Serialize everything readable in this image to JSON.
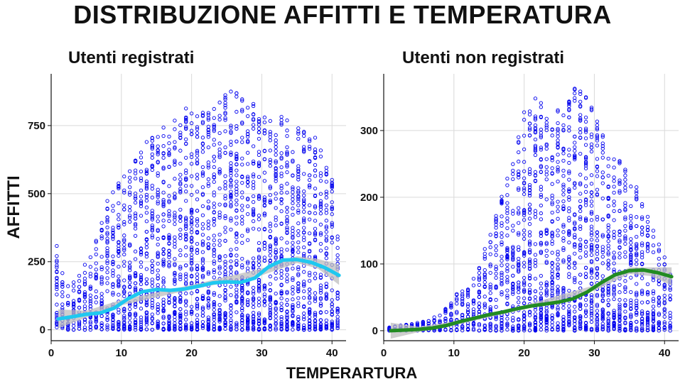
{
  "title": "DISTRIBUZIONE AFFITTI E TEMPERATURA",
  "xlabel": "TEMPERARTURA",
  "ylabel": "AFFITTI",
  "colors": {
    "points": "#0000ee",
    "smooth_registered": "#1ec8f0",
    "smooth_casual": "#228b22",
    "band": "#bdbdbd",
    "grid": "#d9d9d9"
  },
  "chart_data": [
    {
      "type": "scatter",
      "title": "Utenti registrati",
      "xlabel": "TEMPERARTURA",
      "ylabel": "AFFITTI",
      "xlim": [
        0,
        42
      ],
      "ylim": [
        -40,
        940
      ],
      "x_ticks": [
        0,
        10,
        20,
        30,
        40
      ],
      "y_ticks": [
        0,
        250,
        500,
        750
      ],
      "grid": true,
      "point_style": "open-circle",
      "envelope": [
        [
          0.82,
          310
        ],
        [
          2,
          170
        ],
        [
          4,
          200
        ],
        [
          6,
          300
        ],
        [
          8,
          480
        ],
        [
          10,
          560
        ],
        [
          12,
          660
        ],
        [
          14,
          700
        ],
        [
          16,
          780
        ],
        [
          18,
          800
        ],
        [
          20,
          830
        ],
        [
          22,
          840
        ],
        [
          24,
          860
        ],
        [
          26,
          880
        ],
        [
          28,
          860
        ],
        [
          30,
          800
        ],
        [
          32,
          790
        ],
        [
          34,
          780
        ],
        [
          36,
          730
        ],
        [
          38,
          700
        ],
        [
          40,
          560
        ],
        [
          41,
          300
        ]
      ],
      "smooth": {
        "name": "",
        "points": [
          [
            1,
            40
          ],
          [
            3,
            48
          ],
          [
            5,
            57
          ],
          [
            7,
            62
          ],
          [
            9,
            80
          ],
          [
            11,
            115
          ],
          [
            13,
            140
          ],
          [
            15,
            148
          ],
          [
            17,
            145
          ],
          [
            19,
            150
          ],
          [
            21,
            160
          ],
          [
            23,
            172
          ],
          [
            25,
            176
          ],
          [
            27,
            174
          ],
          [
            29,
            190
          ],
          [
            31,
            232
          ],
          [
            33,
            256
          ],
          [
            35,
            258
          ],
          [
            37,
            248
          ],
          [
            39,
            228
          ],
          [
            41,
            200
          ]
        ],
        "band": [
          [
            1,
            5,
            75
          ],
          [
            5,
            45,
            70
          ],
          [
            10,
            90,
            110
          ],
          [
            20,
            148,
            165
          ],
          [
            30,
            200,
            225
          ],
          [
            35,
            245,
            270
          ],
          [
            38,
            225,
            260
          ],
          [
            41,
            165,
            240
          ]
        ]
      }
    },
    {
      "type": "scatter",
      "title": "Utenti non registrati",
      "xlabel": "TEMPERARTURA",
      "ylabel": "AFFITTI",
      "xlim": [
        0,
        42
      ],
      "ylim": [
        -15,
        385
      ],
      "x_ticks": [
        0,
        10,
        20,
        30,
        40
      ],
      "y_ticks": [
        0,
        100,
        200,
        300
      ],
      "grid": true,
      "point_style": "open-circle",
      "envelope": [
        [
          0.82,
          5
        ],
        [
          2,
          8
        ],
        [
          4,
          10
        ],
        [
          6,
          15
        ],
        [
          8,
          25
        ],
        [
          10,
          55
        ],
        [
          12,
          65
        ],
        [
          14,
          110
        ],
        [
          16,
          180
        ],
        [
          18,
          240
        ],
        [
          20,
          330
        ],
        [
          22,
          355
        ],
        [
          24,
          320
        ],
        [
          26,
          350
        ],
        [
          27,
          365
        ],
        [
          28,
          360
        ],
        [
          30,
          340
        ],
        [
          32,
          280
        ],
        [
          34,
          250
        ],
        [
          36,
          225
        ],
        [
          38,
          160
        ],
        [
          40,
          110
        ],
        [
          41,
          100
        ]
      ],
      "smooth": {
        "name": "",
        "points": [
          [
            1,
            0
          ],
          [
            3,
            1
          ],
          [
            5,
            2
          ],
          [
            7,
            4
          ],
          [
            9,
            8
          ],
          [
            11,
            14
          ],
          [
            13,
            19
          ],
          [
            15,
            24
          ],
          [
            17,
            28
          ],
          [
            19,
            33
          ],
          [
            21,
            37
          ],
          [
            23,
            40
          ],
          [
            25,
            43
          ],
          [
            27,
            48
          ],
          [
            29,
            58
          ],
          [
            31,
            72
          ],
          [
            33,
            84
          ],
          [
            35,
            90
          ],
          [
            37,
            91
          ],
          [
            39,
            87
          ],
          [
            41,
            81
          ]
        ],
        "band": [
          [
            1,
            -12,
            12
          ],
          [
            5,
            -2,
            6
          ],
          [
            10,
            8,
            14
          ],
          [
            20,
            32,
            38
          ],
          [
            30,
            60,
            68
          ],
          [
            35,
            85,
            95
          ],
          [
            38,
            82,
            95
          ],
          [
            41,
            68,
            95
          ]
        ]
      }
    }
  ]
}
